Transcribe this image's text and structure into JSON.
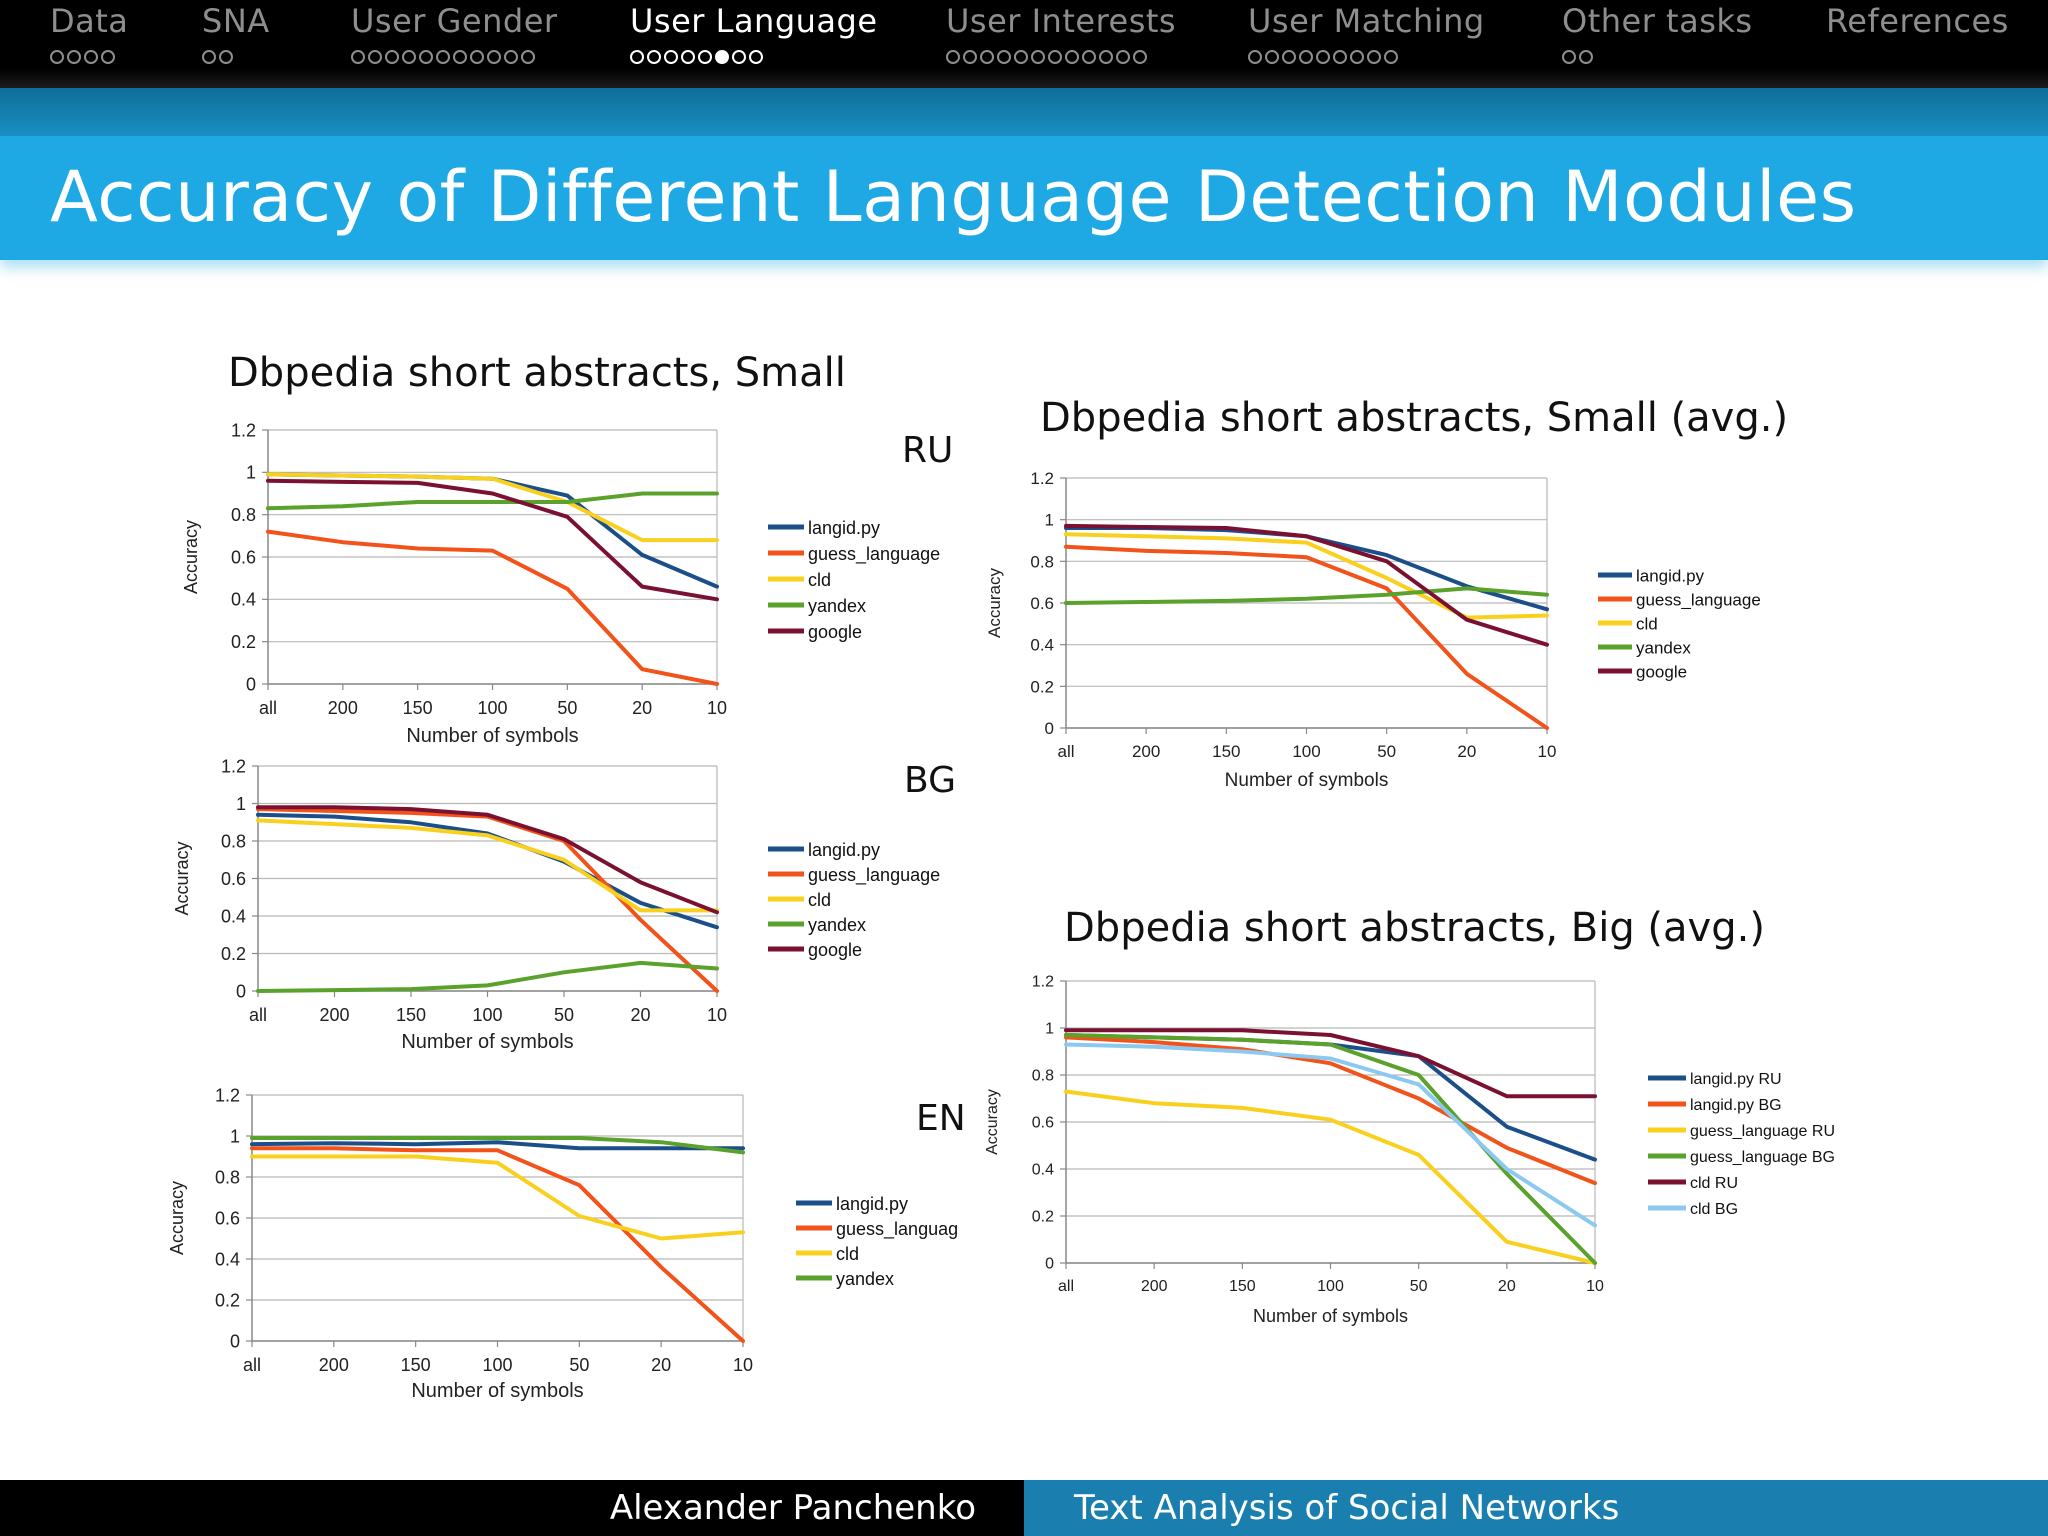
{
  "nav": {
    "sections": [
      {
        "label": "Data",
        "dots": 4,
        "active": false,
        "filled": -1
      },
      {
        "label": "SNA",
        "dots": 2,
        "active": false,
        "filled": -1
      },
      {
        "label": "User Gender",
        "dots": 11,
        "active": false,
        "filled": -1
      },
      {
        "label": "User Language",
        "dots": 8,
        "active": true,
        "filled": 5
      },
      {
        "label": "User Interests",
        "dots": 12,
        "active": false,
        "filled": -1
      },
      {
        "label": "User Matching",
        "dots": 9,
        "active": false,
        "filled": -1
      },
      {
        "label": "Other tasks",
        "dots": 2,
        "active": false,
        "filled": -1
      },
      {
        "label": "References",
        "dots": 0,
        "active": false,
        "filled": -1
      }
    ]
  },
  "slide": {
    "title": "Accuracy of Different Language Detection Modules",
    "panel_small_title": "Dbpedia short abstracts, Small",
    "panel_avg_title": "Dbpedia short abstracts, Small (avg.)",
    "panel_big_title": "Dbpedia short abstracts, Big (avg.)"
  },
  "footer": {
    "author": "Alexander Panchenko",
    "talk": "Text Analysis of Social Networks"
  },
  "colors": {
    "langid": "#1b4f8a",
    "guess": "#f2531b",
    "cld": "#f9d01e",
    "yandex": "#5aa22c",
    "google": "#7b1131",
    "light_blue": "#8bc9f0"
  },
  "chart_data": [
    {
      "id": "ru",
      "type": "line",
      "lang_label": "RU",
      "xlabel": "Number of symbols",
      "ylabel": "Accuracy",
      "categories": [
        "all",
        "200",
        "150",
        "100",
        "50",
        "20",
        "10"
      ],
      "ylim": [
        0,
        1.2
      ],
      "yticks": [
        "0",
        "0.2",
        "0.4",
        "0.6",
        "0.8",
        "1",
        "1.2"
      ],
      "grid": true,
      "legend": "right",
      "series": [
        {
          "name": "langid.py",
          "color": "#1b4f8a",
          "values": [
            0.99,
            0.985,
            0.98,
            0.97,
            0.89,
            0.61,
            0.46
          ]
        },
        {
          "name": "guess_language",
          "color": "#f2531b",
          "values": [
            0.72,
            0.67,
            0.64,
            0.63,
            0.45,
            0.07,
            0.0
          ]
        },
        {
          "name": "cld",
          "color": "#f9d01e",
          "values": [
            0.99,
            0.985,
            0.98,
            0.97,
            0.86,
            0.68,
            0.68
          ]
        },
        {
          "name": "yandex",
          "color": "#5aa22c",
          "values": [
            0.83,
            0.84,
            0.86,
            0.86,
            0.86,
            0.9,
            0.9
          ]
        },
        {
          "name": "google",
          "color": "#7b1131",
          "values": [
            0.96,
            0.955,
            0.95,
            0.9,
            0.79,
            0.46,
            0.4
          ]
        }
      ]
    },
    {
      "id": "bg",
      "type": "line",
      "lang_label": "BG",
      "xlabel": "Number of symbols",
      "ylabel": "Accuracy",
      "categories": [
        "all",
        "200",
        "150",
        "100",
        "50",
        "20",
        "10"
      ],
      "ylim": [
        0,
        1.2
      ],
      "yticks": [
        "0",
        "0.2",
        "0.4",
        "0.6",
        "0.8",
        "1",
        "1.2"
      ],
      "grid": true,
      "legend": "right",
      "series": [
        {
          "name": "langid.py",
          "color": "#1b4f8a",
          "values": [
            0.94,
            0.93,
            0.9,
            0.84,
            0.69,
            0.47,
            0.34
          ]
        },
        {
          "name": "guess_language",
          "color": "#f2531b",
          "values": [
            0.97,
            0.96,
            0.95,
            0.93,
            0.8,
            0.38,
            0.0
          ]
        },
        {
          "name": "cld",
          "color": "#f9d01e",
          "values": [
            0.91,
            0.89,
            0.87,
            0.83,
            0.7,
            0.43,
            0.43
          ]
        },
        {
          "name": "yandex",
          "color": "#5aa22c",
          "values": [
            0.0,
            0.005,
            0.01,
            0.03,
            0.1,
            0.15,
            0.12
          ]
        },
        {
          "name": "google",
          "color": "#7b1131",
          "values": [
            0.98,
            0.98,
            0.97,
            0.94,
            0.81,
            0.58,
            0.42
          ]
        }
      ]
    },
    {
      "id": "en",
      "type": "line",
      "lang_label": "EN",
      "xlabel": "Number of symbols",
      "ylabel": "Accuracy",
      "categories": [
        "all",
        "200",
        "150",
        "100",
        "50",
        "20",
        "10"
      ],
      "ylim": [
        0,
        1.2
      ],
      "yticks": [
        "0",
        "0.2",
        "0.4",
        "0.6",
        "0.8",
        "1",
        "1.2"
      ],
      "grid": true,
      "legend": "right",
      "series": [
        {
          "name": "langid.py",
          "color": "#1b4f8a",
          "values": [
            0.96,
            0.965,
            0.96,
            0.97,
            0.94,
            0.94,
            0.94
          ]
        },
        {
          "name": "guess_languag",
          "color": "#f2531b",
          "values": [
            0.94,
            0.94,
            0.93,
            0.93,
            0.76,
            0.36,
            0.0
          ]
        },
        {
          "name": "cld",
          "color": "#f9d01e",
          "values": [
            0.9,
            0.9,
            0.9,
            0.87,
            0.61,
            0.5,
            0.53
          ]
        },
        {
          "name": "yandex",
          "color": "#5aa22c",
          "values": [
            0.99,
            0.99,
            0.99,
            0.99,
            0.99,
            0.97,
            0.92
          ]
        }
      ]
    },
    {
      "id": "small_avg",
      "type": "line",
      "xlabel": "Number of symbols",
      "ylabel": "Accuracy",
      "categories": [
        "all",
        "200",
        "150",
        "100",
        "50",
        "20",
        "10"
      ],
      "ylim": [
        0,
        1.2
      ],
      "yticks": [
        "0",
        "0.2",
        "0.4",
        "0.6",
        "0.8",
        "1",
        "1.2"
      ],
      "grid": true,
      "legend": "right",
      "series": [
        {
          "name": "langid.py",
          "color": "#1b4f8a",
          "values": [
            0.96,
            0.96,
            0.95,
            0.92,
            0.83,
            0.68,
            0.57
          ]
        },
        {
          "name": "guess_language",
          "color": "#f2531b",
          "values": [
            0.87,
            0.85,
            0.84,
            0.82,
            0.67,
            0.26,
            0.0
          ]
        },
        {
          "name": "cld",
          "color": "#f9d01e",
          "values": [
            0.93,
            0.92,
            0.91,
            0.89,
            0.72,
            0.53,
            0.54
          ]
        },
        {
          "name": "yandex",
          "color": "#5aa22c",
          "values": [
            0.6,
            0.605,
            0.61,
            0.62,
            0.64,
            0.67,
            0.64
          ]
        },
        {
          "name": "google",
          "color": "#7b1131",
          "values": [
            0.97,
            0.965,
            0.96,
            0.92,
            0.8,
            0.52,
            0.4
          ]
        }
      ]
    },
    {
      "id": "big_avg",
      "type": "line",
      "xlabel": "Number of symbols",
      "ylabel": "Accuracy",
      "categories": [
        "all",
        "200",
        "150",
        "100",
        "50",
        "20",
        "10"
      ],
      "ylim": [
        0,
        1.2
      ],
      "yticks": [
        "0",
        "0.2",
        "0.4",
        "0.6",
        "0.8",
        "1",
        "1.2"
      ],
      "grid": true,
      "legend": "right",
      "series": [
        {
          "name": "langid.py RU",
          "color": "#1b4f8a",
          "values": [
            0.97,
            0.96,
            0.95,
            0.93,
            0.88,
            0.58,
            0.44
          ]
        },
        {
          "name": "langid.py BG",
          "color": "#f2531b",
          "values": [
            0.96,
            0.94,
            0.91,
            0.85,
            0.7,
            0.49,
            0.34
          ]
        },
        {
          "name": "guess_language RU",
          "color": "#f9d01e",
          "values": [
            0.73,
            0.68,
            0.66,
            0.61,
            0.46,
            0.09,
            0.0
          ]
        },
        {
          "name": "guess_language BG",
          "color": "#5aa22c",
          "values": [
            0.97,
            0.96,
            0.95,
            0.93,
            0.8,
            0.38,
            0.0
          ]
        },
        {
          "name": "cld RU",
          "color": "#7b1131",
          "values": [
            0.99,
            0.99,
            0.99,
            0.97,
            0.88,
            0.71,
            0.71
          ]
        },
        {
          "name": "cld BG",
          "color": "#8bc9f0",
          "values": [
            0.93,
            0.92,
            0.9,
            0.87,
            0.76,
            0.4,
            0.16
          ]
        }
      ]
    }
  ]
}
